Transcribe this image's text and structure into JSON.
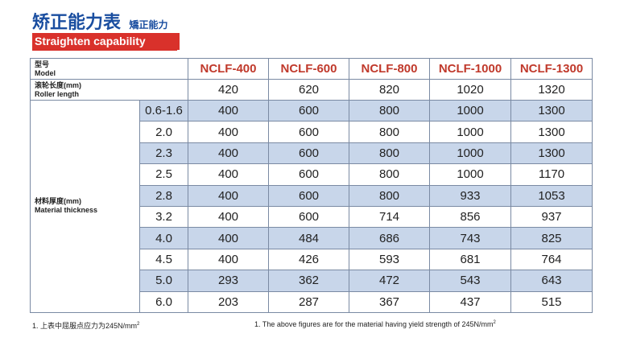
{
  "title": {
    "main": "矫正能力表",
    "sub": "矯正能力"
  },
  "banner": "Straighten capability",
  "table": {
    "model_label_cn": "型号",
    "model_label_en": "Model",
    "roller_label_cn": "滚轮长度(mm)",
    "roller_label_en": "Roller length",
    "thickness_label_cn": "材料厚度(mm)",
    "thickness_label_en": "Material thickness",
    "models": [
      "NCLF-400",
      "NCLF-600",
      "NCLF-800",
      "NCLF-1000",
      "NCLF-1300"
    ],
    "roller_lengths": [
      "420",
      "620",
      "820",
      "1020",
      "1320"
    ],
    "rows": [
      {
        "thickness": "0.6-1.6",
        "values": [
          "400",
          "600",
          "800",
          "1000",
          "1300"
        ]
      },
      {
        "thickness": "2.0",
        "values": [
          "400",
          "600",
          "800",
          "1000",
          "1300"
        ]
      },
      {
        "thickness": "2.3",
        "values": [
          "400",
          "600",
          "800",
          "1000",
          "1300"
        ]
      },
      {
        "thickness": "2.5",
        "values": [
          "400",
          "600",
          "800",
          "1000",
          "1170"
        ]
      },
      {
        "thickness": "2.8",
        "values": [
          "400",
          "600",
          "800",
          "933",
          "1053"
        ]
      },
      {
        "thickness": "3.2",
        "values": [
          "400",
          "600",
          "714",
          "856",
          "937"
        ]
      },
      {
        "thickness": "4.0",
        "values": [
          "400",
          "484",
          "686",
          "743",
          "825"
        ]
      },
      {
        "thickness": "4.5",
        "values": [
          "400",
          "426",
          "593",
          "681",
          "764"
        ]
      },
      {
        "thickness": "5.0",
        "values": [
          "293",
          "362",
          "472",
          "543",
          "643"
        ]
      },
      {
        "thickness": "6.0",
        "values": [
          "203",
          "287",
          "367",
          "437",
          "515"
        ]
      }
    ]
  },
  "notes": {
    "cn": "1. 上表中屈服点应力为245N/mm",
    "en": "1. The above figures are for the material having yield strength of 245N/mm",
    "sup": "2"
  },
  "colors": {
    "title_blue": "#1a4ea0",
    "banner_red": "#d9312b",
    "header_red": "#c0392b",
    "band_blue": "#c8d6ea"
  }
}
